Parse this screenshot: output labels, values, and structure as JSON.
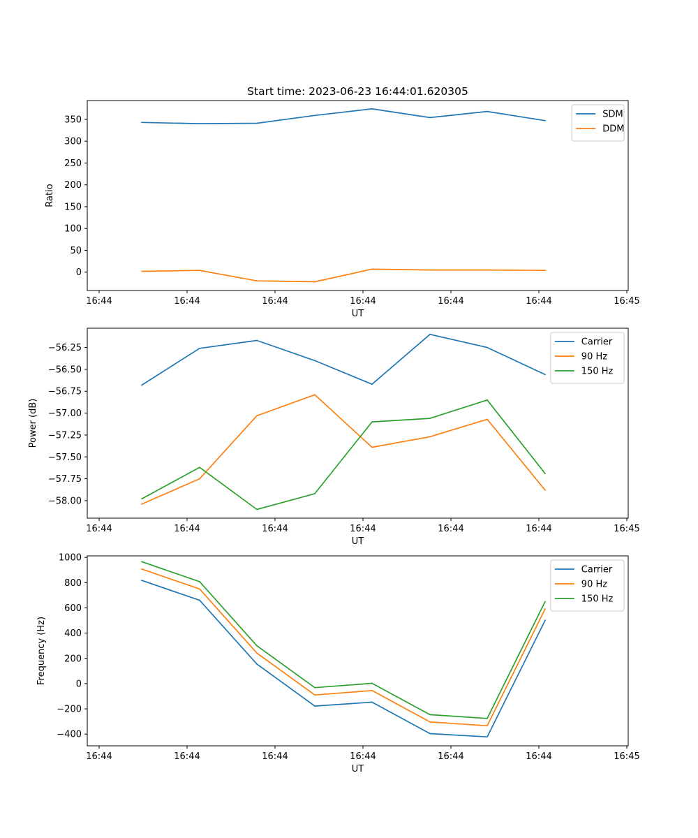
{
  "figure": {
    "title": "Start time: 2023-06-23 16:44:01.620305"
  },
  "chart_data": [
    {
      "type": "line",
      "xlabel": "UT",
      "ylabel": "Ratio",
      "x": [
        "16:44",
        "16:44",
        "16:44",
        "16:44",
        "16:44",
        "16:44",
        "16:44",
        "16:44"
      ],
      "xlim_ticks": [
        "16:44",
        "16:44",
        "16:44",
        "16:44",
        "16:44",
        "16:44",
        "16:45"
      ],
      "ylim": [
        -42,
        393
      ],
      "yticks": [
        0,
        50,
        100,
        150,
        200,
        250,
        300,
        350
      ],
      "ytick_labels": [
        "0",
        "50",
        "100",
        "150",
        "200",
        "250",
        "300",
        "350"
      ],
      "legend": "top-right",
      "grid": false,
      "series": [
        {
          "name": "SDM",
          "color": "#1f77b4",
          "values": [
            343,
            340,
            341,
            359,
            374,
            354,
            368,
            347
          ]
        },
        {
          "name": "DDM",
          "color": "#ff7f0e",
          "values": [
            2,
            4,
            -20,
            -22,
            7,
            5,
            5,
            4
          ]
        }
      ]
    },
    {
      "type": "line",
      "xlabel": "UT",
      "ylabel": "Power (dB)",
      "x": [
        "16:44",
        "16:44",
        "16:44",
        "16:44",
        "16:44",
        "16:44",
        "16:44",
        "16:44"
      ],
      "xlim_ticks": [
        "16:44",
        "16:44",
        "16:44",
        "16:44",
        "16:44",
        "16:44",
        "16:45"
      ],
      "ylim": [
        -58.2,
        -56.03
      ],
      "yticks": [
        -58.0,
        -57.75,
        -57.5,
        -57.25,
        -57.0,
        -56.75,
        -56.5,
        -56.25
      ],
      "ytick_labels": [
        "−58.00",
        "−57.75",
        "−57.50",
        "−57.25",
        "−57.00",
        "−56.75",
        "−56.50",
        "−56.25"
      ],
      "legend": "top-right",
      "grid": false,
      "series": [
        {
          "name": "Carrier",
          "color": "#1f77b4",
          "values": [
            -56.68,
            -56.26,
            -56.17,
            -56.4,
            -56.67,
            -56.1,
            -56.25,
            -56.56
          ]
        },
        {
          "name": "90 Hz",
          "color": "#ff7f0e",
          "values": [
            -58.04,
            -57.75,
            -57.03,
            -56.79,
            -57.39,
            -57.27,
            -57.07,
            -57.88
          ]
        },
        {
          "name": "150 Hz",
          "color": "#2ca02c",
          "values": [
            -57.98,
            -57.62,
            -58.1,
            -57.92,
            -57.1,
            -57.06,
            -56.85,
            -57.69
          ]
        }
      ]
    },
    {
      "type": "line",
      "xlabel": "UT",
      "ylabel": "Frequency (Hz)",
      "x": [
        "16:44",
        "16:44",
        "16:44",
        "16:44",
        "16:44",
        "16:44",
        "16:44",
        "16:44"
      ],
      "xlim_ticks": [
        "16:44",
        "16:44",
        "16:44",
        "16:44",
        "16:44",
        "16:44",
        "16:45"
      ],
      "ylim": [
        -493,
        1012
      ],
      "yticks": [
        -400,
        -200,
        0,
        200,
        400,
        600,
        800,
        1000
      ],
      "ytick_labels": [
        "−400",
        "−200",
        "0",
        "200",
        "400",
        "600",
        "800",
        "1000"
      ],
      "legend": "top-right",
      "grid": false,
      "series": [
        {
          "name": "Carrier",
          "color": "#1f77b4",
          "values": [
            818,
            660,
            155,
            -178,
            -147,
            -396,
            -422,
            502
          ]
        },
        {
          "name": "90 Hz",
          "color": "#ff7f0e",
          "values": [
            908,
            750,
            242,
            -90,
            -55,
            -304,
            -334,
            592
          ]
        },
        {
          "name": "150 Hz",
          "color": "#2ca02c",
          "values": [
            966,
            808,
            300,
            -32,
            2,
            -246,
            -276,
            650
          ]
        }
      ]
    }
  ]
}
